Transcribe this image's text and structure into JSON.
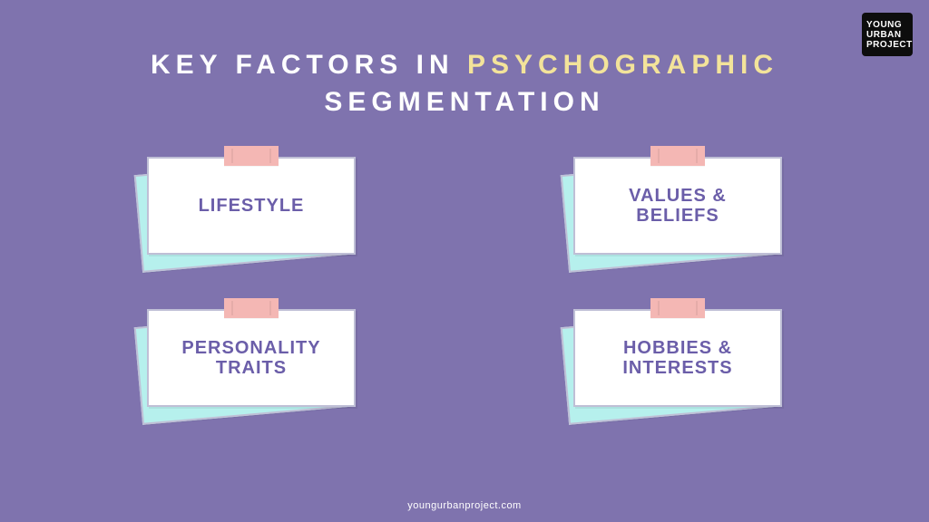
{
  "background_color": "#7f73ae",
  "logo": {
    "line1": "YOUNG",
    "line2": "URBAN",
    "line3": "PROJECT",
    "bg": "#0d0d0d",
    "color": "#ffffff"
  },
  "title": {
    "part1": "KEY FACTORS IN ",
    "highlight": "PSYCHOGRAPHIC",
    "part2": "SEGMENTATION",
    "color_normal": "#ffffff",
    "color_highlight": "#f3e39a",
    "fontsize": 30,
    "letter_spacing": 6
  },
  "cards": {
    "back_color": "#b6f0ed",
    "front_color": "#ffffff",
    "border_color": "#bfbfd6",
    "tape_color": "#f4b7b4",
    "text_color": "#6b5ea9",
    "fontsize": 20,
    "items": [
      {
        "label": "LIFESTYLE"
      },
      {
        "label": "VALUES &\nBELIEFS"
      },
      {
        "label": "PERSONALITY\nTRAITS"
      },
      {
        "label": "HOBBIES &\nINTERESTS"
      }
    ]
  },
  "footer": {
    "text": "youngurbanproject.com",
    "color": "#ffffff"
  }
}
